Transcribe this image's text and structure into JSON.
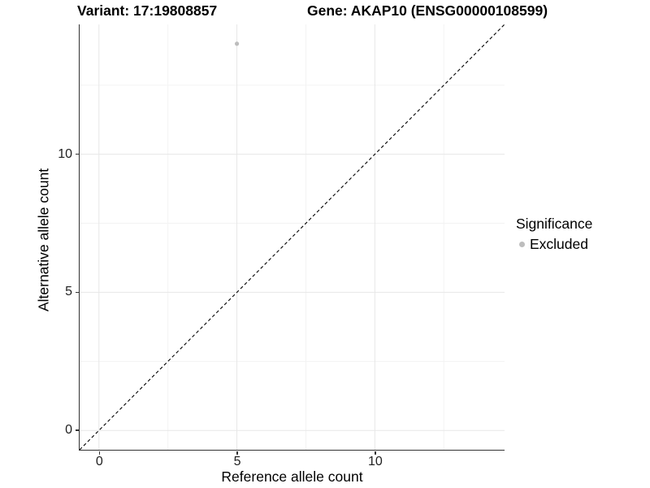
{
  "chart_data": {
    "type": "scatter",
    "titles": {
      "variant": "Variant: 17:19808857",
      "gene": "Gene: AKAP10 (ENSG00000108599)"
    },
    "xlabel": "Reference allele count",
    "ylabel": "Alternative allele count",
    "xlim": [
      -0.7,
      14.7
    ],
    "ylim": [
      -0.7,
      14.7
    ],
    "x_ticks": [
      0,
      5,
      10
    ],
    "y_ticks": [
      0,
      5,
      10
    ],
    "minor_gridlines": [
      2.5,
      7.5,
      12.5
    ],
    "grid": true,
    "points": [
      {
        "x": 5,
        "y": 14,
        "series": "Excluded",
        "color": "#bdbdbd"
      }
    ],
    "identity_line": {
      "style": "dashed",
      "x1": -0.7,
      "y1": -0.7,
      "x2": 14.7,
      "y2": 14.7,
      "color": "#000000"
    },
    "legend": {
      "title": "Significance",
      "position": "right",
      "entries": [
        {
          "label": "Excluded",
          "color": "#bdbdbd",
          "marker": "circle"
        }
      ]
    },
    "colors": {
      "axis": "#333333",
      "grid_major": "#e7e7e7",
      "grid_minor": "#f3f3f3",
      "tick_label": "#1f1f1f",
      "point": "#bdbdbd",
      "background": "#ffffff"
    }
  }
}
